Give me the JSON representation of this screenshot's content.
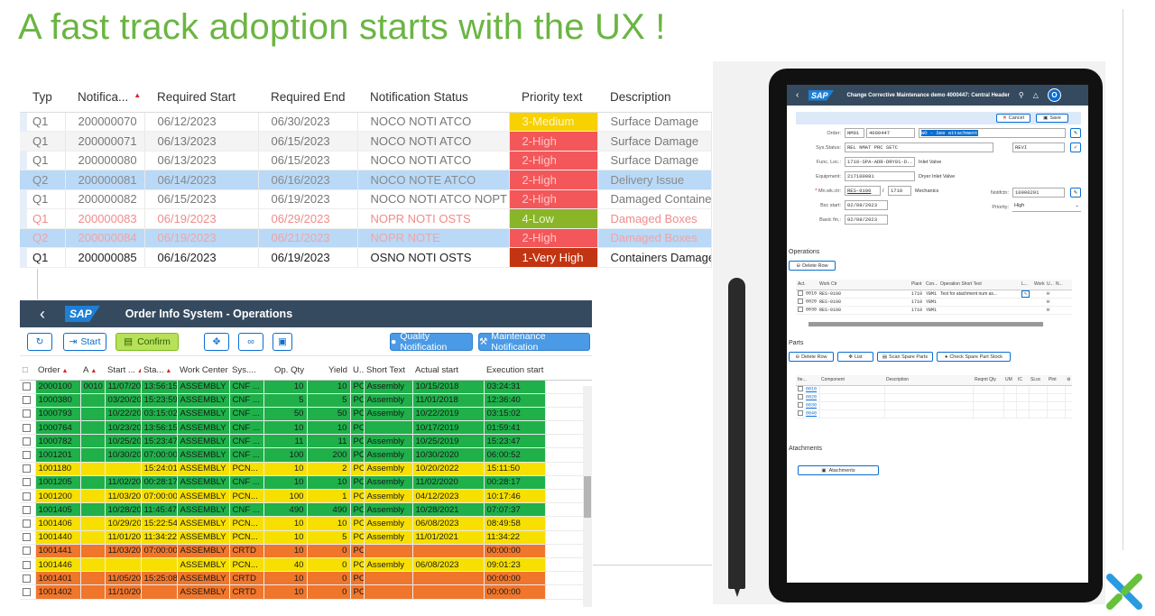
{
  "title": "A fast track adoption starts with the UX !",
  "notifications": {
    "columns": [
      "Typ",
      "Notifica...",
      "Required Start",
      "Required End",
      "Notification Status",
      "Priority text",
      "Description"
    ],
    "rows": [
      {
        "typ": "Q1",
        "num": "200000070",
        "start": "06/12/2023",
        "end": "06/30/2023",
        "status": "NOCO NOTI ATCO",
        "priority": "3-Medium",
        "desc": "Surface Damage"
      },
      {
        "typ": "Q1",
        "num": "200000071",
        "start": "06/13/2023",
        "end": "06/15/2023",
        "status": "NOCO NOTI ATCO",
        "priority": "2-High",
        "desc": "Surface Damage"
      },
      {
        "typ": "Q1",
        "num": "200000080",
        "start": "06/13/2023",
        "end": "06/15/2023",
        "status": "NOCO NOTI ATCO",
        "priority": "2-High",
        "desc": "Surface Damage"
      },
      {
        "typ": "Q2",
        "num": "200000081",
        "start": "06/14/2023",
        "end": "06/16/2023",
        "status": "NOCO NOTE ATCO",
        "priority": "2-High",
        "desc": "Delivery Issue"
      },
      {
        "typ": "Q1",
        "num": "200000082",
        "start": "06/15/2023",
        "end": "06/19/2023",
        "status": "NOCO NOTI ATCO NOPT",
        "priority": "2-High",
        "desc": "Damaged Containers"
      },
      {
        "typ": "Q1",
        "num": "200000083",
        "start": "06/19/2023",
        "end": "06/29/2023",
        "status": "NOPR NOTI OSTS",
        "priority": "4-Low",
        "desc": "Damaged Boxes"
      },
      {
        "typ": "Q2",
        "num": "200000084",
        "start": "06/19/2023",
        "end": "06/21/2023",
        "status": "NOPR NOTE",
        "priority": "2-High",
        "desc": "Damaged Boxes"
      },
      {
        "typ": "Q1",
        "num": "200000085",
        "start": "06/16/2023",
        "end": "06/19/2023",
        "status": "OSNO NOTI OSTS",
        "priority": "1-Very High",
        "desc": "Containers Damaged"
      }
    ]
  },
  "ois": {
    "title": "Order Info System - Operations",
    "start_label": "Start",
    "confirm_label": "Confirm",
    "quality_label": "Quality Notification",
    "maintenance_label": "Maintenance Notification",
    "columns": [
      "Order",
      "A",
      "Start ...",
      "Sta...",
      "Work Center",
      "Sys....",
      "Op. Qty",
      "Yield",
      "U...",
      "Short Text",
      "Actual start",
      "Execution start"
    ],
    "rows": [
      {
        "c": "g",
        "order": "2000100",
        "a": "0010",
        "d": "11/07/2018",
        "t": "13:56:15",
        "wc": "ASSEMBLY",
        "sys": "CNF ...",
        "qty": "10",
        "yield": "10",
        "u": "PC",
        "st": "Assembly",
        "as": "10/15/2018",
        "es": "03:24:31"
      },
      {
        "c": "g",
        "order": "1000380",
        "a": "",
        "d": "03/20/2019",
        "t": "15:23:59",
        "wc": "ASSEMBLY",
        "sys": "CNF ...",
        "qty": "5",
        "yield": "5",
        "u": "PC",
        "st": "Assembly",
        "as": "11/01/2018",
        "es": "12:36:40"
      },
      {
        "c": "g",
        "order": "1000793",
        "a": "",
        "d": "10/22/2019",
        "t": "03:15:02",
        "wc": "ASSEMBLY",
        "sys": "CNF ...",
        "qty": "50",
        "yield": "50",
        "u": "PC",
        "st": "Assembly",
        "as": "10/22/2019",
        "es": "03:15:02"
      },
      {
        "c": "g",
        "order": "1000764",
        "a": "",
        "d": "10/23/2019",
        "t": "13:56:15",
        "wc": "ASSEMBLY",
        "sys": "CNF ...",
        "qty": "10",
        "yield": "10",
        "u": "PC",
        "st": "",
        "as": "10/17/2019",
        "es": "01:59:41"
      },
      {
        "c": "g",
        "order": "1000782",
        "a": "",
        "d": "10/25/2019",
        "t": "15:23:47",
        "wc": "ASSEMBLY",
        "sys": "CNF ...",
        "qty": "11",
        "yield": "11",
        "u": "PC",
        "st": "Assembly",
        "as": "10/25/2019",
        "es": "15:23:47"
      },
      {
        "c": "g",
        "order": "1001201",
        "a": "",
        "d": "10/30/2020",
        "t": "07:00:00",
        "wc": "ASSEMBLY",
        "sys": "CNF ...",
        "qty": "100",
        "yield": "200",
        "u": "PC",
        "st": "Assembly",
        "as": "10/30/2020",
        "es": "06:00:52"
      },
      {
        "c": "y",
        "order": "1001180",
        "a": "",
        "d": "",
        "t": "15:24:01",
        "wc": "ASSEMBLY",
        "sys": "PCN...",
        "qty": "10",
        "yield": "2",
        "u": "PC",
        "st": "Assembly",
        "as": "10/20/2022",
        "es": "15:11:50"
      },
      {
        "c": "g",
        "order": "1001205",
        "a": "",
        "d": "11/02/2020",
        "t": "00:28:17",
        "wc": "ASSEMBLY",
        "sys": "CNF ...",
        "qty": "10",
        "yield": "10",
        "u": "PC",
        "st": "Assembly",
        "as": "11/02/2020",
        "es": "00:28:17"
      },
      {
        "c": "y",
        "order": "1001200",
        "a": "",
        "d": "11/03/2020",
        "t": "07:00:00",
        "wc": "ASSEMBLY",
        "sys": "PCN...",
        "qty": "100",
        "yield": "1",
        "u": "PC",
        "st": "Assembly",
        "as": "04/12/2023",
        "es": "10:17:46"
      },
      {
        "c": "g",
        "order": "1001405",
        "a": "",
        "d": "10/28/2021",
        "t": "11:45:47",
        "wc": "ASSEMBLY",
        "sys": "CNF ...",
        "qty": "490",
        "yield": "490",
        "u": "PC",
        "st": "Assembly",
        "as": "10/28/2021",
        "es": "07:07:37"
      },
      {
        "c": "y",
        "order": "1001406",
        "a": "",
        "d": "10/29/2021",
        "t": "15:22:54",
        "wc": "ASSEMBLY",
        "sys": "PCN...",
        "qty": "10",
        "yield": "10",
        "u": "PC",
        "st": "Assembly",
        "as": "06/08/2023",
        "es": "08:49:58"
      },
      {
        "c": "y",
        "order": "1001440",
        "a": "",
        "d": "11/01/2021",
        "t": "11:34:22",
        "wc": "ASSEMBLY",
        "sys": "PCN...",
        "qty": "10",
        "yield": "5",
        "u": "PC",
        "st": "Assembly",
        "as": "11/01/2021",
        "es": "11:34:22"
      },
      {
        "c": "o",
        "order": "1001441",
        "a": "",
        "d": "11/03/2021",
        "t": "07:00:00",
        "wc": "ASSEMBLY",
        "sys": "CRTD",
        "qty": "10",
        "yield": "0",
        "u": "PC",
        "st": "",
        "as": "",
        "es": "00:00:00"
      },
      {
        "c": "y",
        "order": "1001446",
        "a": "",
        "d": "",
        "t": "",
        "wc": "ASSEMBLY",
        "sys": "PCN...",
        "qty": "40",
        "yield": "0",
        "u": "PC",
        "st": "Assembly",
        "as": "06/08/2023",
        "es": "09:01:23"
      },
      {
        "c": "o",
        "order": "1001401",
        "a": "",
        "d": "11/05/2021",
        "t": "15:25:08",
        "wc": "ASSEMBLY",
        "sys": "CRTD",
        "qty": "10",
        "yield": "0",
        "u": "PC",
        "st": "",
        "as": "",
        "es": "00:00:00"
      },
      {
        "c": "o",
        "order": "1001402",
        "a": "",
        "d": "11/10/2021",
        "t": "",
        "wc": "ASSEMBLY",
        "sys": "CRTD",
        "qty": "10",
        "yield": "0",
        "u": "PC",
        "st": "",
        "as": "",
        "es": "00:00:00"
      }
    ]
  },
  "tablet": {
    "shell_title": "Change Corrective Maintenance demo 4000447: Central Header",
    "avatar": "O",
    "cancel": "Cancel",
    "save": "Save",
    "order_label": "Order:",
    "order_type": "NM01",
    "order_num": "4000447",
    "order_desc": "WO - See attachment",
    "sys_label": "Sys.Status:",
    "sys_value": "REL  NMAT PRC  SETC",
    "sys_user": "REVI",
    "func_label": "Func. Loc.:",
    "func_value": "1710-SPA-ADR-DRY01-D...",
    "func_text": "Inlet Valve",
    "equip_label": "Equipment:",
    "equip_value": "217100081",
    "equip_text": "Dryer Inlet Valve",
    "mnwk_label": "Mn.wk.ctr:",
    "mnwk_value": "RES-0100",
    "mnwk_plant": "1710",
    "mnwk_text": "Mechanics",
    "notif_label": "Notifctn:",
    "notif_value": "10000291",
    "prio_label": "Priority:",
    "prio_value": "High",
    "bsc_start_label": "Bsc start:",
    "bsc_start": "02/08/2023",
    "basic_fin_label": "Basic fin.:",
    "basic_fin": "02/08/2023",
    "ops_title": "Operations",
    "delete_row": "Delete Row",
    "ops_columns": [
      "Act.",
      "Work Ctr",
      "Plant",
      "Con...",
      "Operation Short Text",
      "L...",
      "Work",
      "U...",
      "N..."
    ],
    "ops_rows": [
      {
        "act": "0010",
        "wc": "RES-0100",
        "plant": "1710",
        "con": "YBM1",
        "text": "Test for atachment num as...",
        "u": "H"
      },
      {
        "act": "0020",
        "wc": "RES-0100",
        "plant": "1710",
        "con": "YBM1",
        "text": "",
        "u": "H"
      },
      {
        "act": "0030",
        "wc": "RES-0100",
        "plant": "1710",
        "con": "YBM1",
        "text": "",
        "u": "H"
      }
    ],
    "parts_title": "Parts",
    "parts_delete": "Delete Row",
    "parts_list": "List",
    "parts_scan": "Scan Spare Parts",
    "parts_check": "Check Spare Part Stock",
    "parts_columns": [
      "Ite...",
      "Component",
      "Description",
      "Reqmt Qty",
      "UM",
      "IC",
      "SLoc",
      "Plnt"
    ],
    "parts_items": [
      "0010",
      "0020",
      "0030",
      "0040"
    ],
    "attach_title": "Atachments",
    "attach_button": "Atachments"
  },
  "colors": {
    "accent_green": "#6bb542",
    "shell": "#354a5f",
    "status_green": "#1fb04a",
    "status_yellow": "#f7e000",
    "status_orange": "#f0762b"
  }
}
